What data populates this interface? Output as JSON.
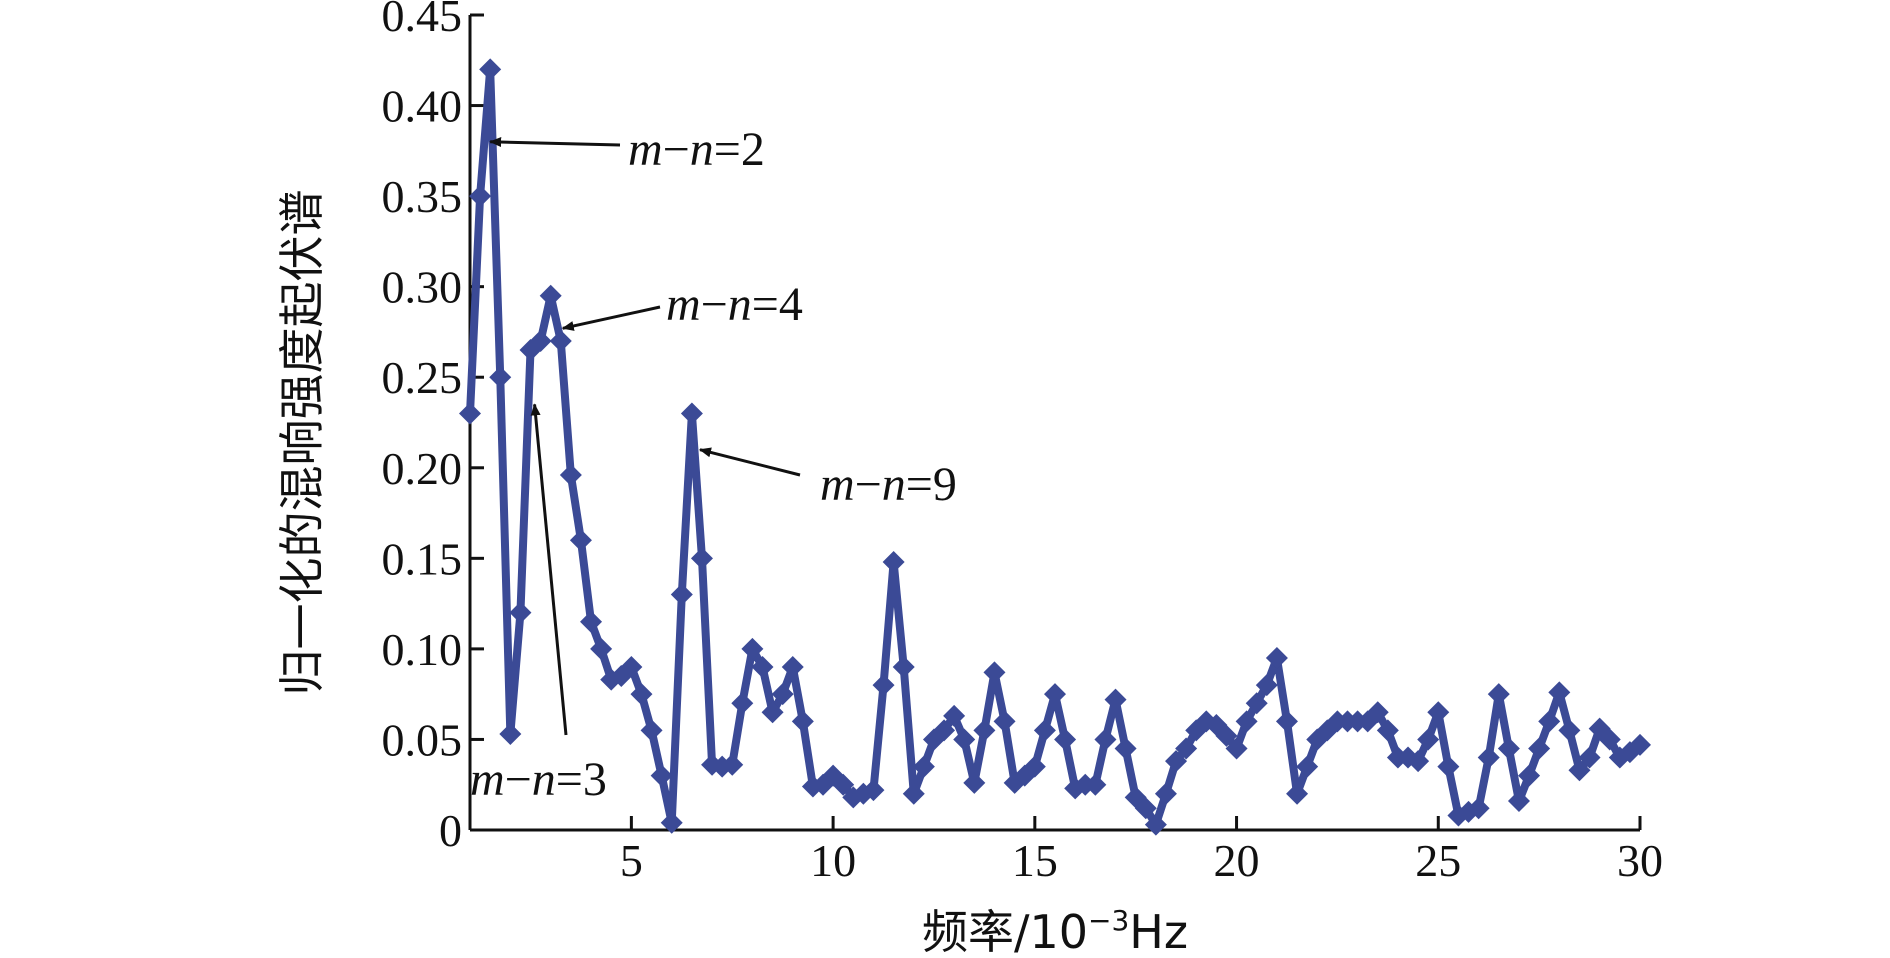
{
  "chart_data": {
    "type": "line",
    "title": "",
    "xlabel_main": "频率/10",
    "xlabel_exp": "−3",
    "xlabel_unit": "Hz",
    "ylabel": "归一化的混响强度起伏谱",
    "xlim": [
      1,
      30
    ],
    "ylim": [
      0,
      0.45
    ],
    "xticks": [
      5,
      10,
      15,
      20,
      25,
      30
    ],
    "xtick_labels": [
      "5",
      "10",
      "15",
      "20",
      "25",
      "30"
    ],
    "yticks": [
      0,
      0.05,
      0.1,
      0.15,
      0.2,
      0.25,
      0.3,
      0.35,
      0.4,
      0.45
    ],
    "ytick_labels": [
      "0",
      "0.05",
      "0.10",
      "0.15",
      "0.20",
      "0.25",
      "0.30",
      "0.35",
      "0.40",
      "0.45"
    ],
    "grid": false,
    "line_color": "#3b4a96",
    "series": [
      {
        "x": [
          1.0,
          1.25,
          1.5,
          1.75,
          2.0,
          2.25,
          2.5,
          2.75,
          3.0,
          3.25,
          3.5,
          3.75,
          4.0,
          4.25,
          4.5,
          4.75,
          5.0,
          5.25,
          5.5,
          5.75,
          6.0,
          6.25,
          6.5,
          6.75,
          7.0,
          7.25,
          7.5,
          7.75,
          8.0,
          8.25,
          8.5,
          8.75,
          9.0,
          9.25,
          9.5,
          9.75,
          10.0,
          10.25,
          10.5,
          10.75,
          11.0,
          11.25,
          11.5,
          11.75,
          12.0,
          12.25,
          12.5,
          12.75,
          13.0,
          13.25,
          13.5,
          13.75,
          14.0,
          14.25,
          14.5,
          14.75,
          15.0,
          15.25,
          15.5,
          15.75,
          16.0,
          16.25,
          16.5,
          16.75,
          17.0,
          17.25,
          17.5,
          17.75,
          18.0,
          18.25,
          18.5,
          18.75,
          19.0,
          19.25,
          19.5,
          19.75,
          20.0,
          20.25,
          20.5,
          20.75,
          21.0,
          21.25,
          21.5,
          21.75,
          22.0,
          22.25,
          22.5,
          22.75,
          23.0,
          23.25,
          23.5,
          23.75,
          24.0,
          24.25,
          24.5,
          24.75,
          25.0,
          25.25,
          25.5,
          25.75,
          26.0,
          26.25,
          26.5,
          26.75,
          27.0,
          27.25,
          27.5,
          27.75,
          28.0,
          28.25,
          28.5,
          28.75,
          29.0,
          29.25,
          29.5,
          29.75,
          30.0
        ],
        "y": [
          0.23,
          0.35,
          0.42,
          0.25,
          0.053,
          0.12,
          0.265,
          0.27,
          0.295,
          0.27,
          0.196,
          0.16,
          0.115,
          0.1,
          0.083,
          0.085,
          0.09,
          0.075,
          0.055,
          0.03,
          0.004,
          0.13,
          0.23,
          0.15,
          0.036,
          0.035,
          0.036,
          0.07,
          0.1,
          0.09,
          0.065,
          0.075,
          0.09,
          0.06,
          0.024,
          0.025,
          0.03,
          0.025,
          0.018,
          0.02,
          0.022,
          0.08,
          0.148,
          0.09,
          0.02,
          0.035,
          0.05,
          0.055,
          0.063,
          0.05,
          0.026,
          0.055,
          0.087,
          0.06,
          0.026,
          0.03,
          0.035,
          0.055,
          0.075,
          0.05,
          0.023,
          0.025,
          0.025,
          0.05,
          0.072,
          0.045,
          0.018,
          0.012,
          0.003,
          0.02,
          0.038,
          0.045,
          0.055,
          0.06,
          0.058,
          0.052,
          0.045,
          0.06,
          0.07,
          0.08,
          0.095,
          0.06,
          0.02,
          0.035,
          0.05,
          0.055,
          0.06,
          0.06,
          0.06,
          0.06,
          0.065,
          0.055,
          0.04,
          0.04,
          0.038,
          0.05,
          0.065,
          0.035,
          0.008,
          0.01,
          0.012,
          0.04,
          0.075,
          0.045,
          0.016,
          0.03,
          0.045,
          0.06,
          0.076,
          0.055,
          0.033,
          0.04,
          0.056,
          0.05,
          0.04,
          0.043,
          0.047
        ]
      }
    ],
    "annotations": [
      {
        "text_main": "m",
        "text_dash": "−",
        "text_n": "n",
        "text_value": "=2",
        "target": [
          1.5,
          0.38
        ]
      },
      {
        "text_main": "m",
        "text_dash": "−",
        "text_n": "n",
        "text_value": "=4",
        "target": [
          3.3,
          0.277
        ]
      },
      {
        "text_main": "m",
        "text_dash": "−",
        "text_n": "n",
        "text_value": "=9",
        "target": [
          6.7,
          0.21
        ]
      },
      {
        "text_main": "m",
        "text_dash": "−",
        "text_n": "n",
        "text_value": "=3",
        "target": [
          2.6,
          0.235
        ]
      }
    ]
  }
}
